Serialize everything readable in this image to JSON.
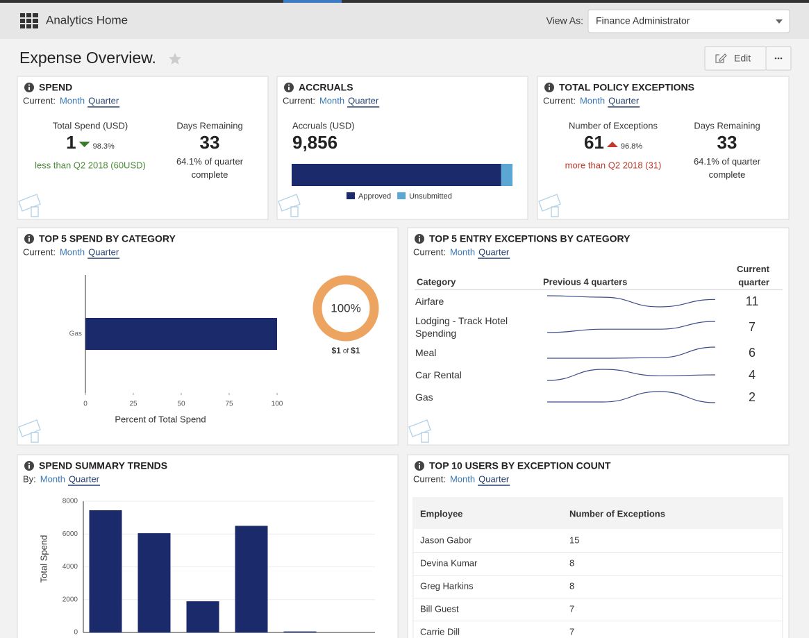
{
  "header": {
    "app_title": "Analytics Home",
    "view_as_label": "View As:",
    "view_as_value": "Finance Administrator"
  },
  "page": {
    "title": "Expense Overview.",
    "edit_button": "Edit"
  },
  "cards": [
    {
      "title": "SPEND",
      "period_label": "Current:",
      "period_options": [
        "Month",
        "Quarter"
      ],
      "period_selected": 1,
      "kpis": [
        {
          "label": "Total Spend (USD)",
          "value": "1",
          "change": "98.3%",
          "direction": "down",
          "note": "less than Q2 2018 (60USD)"
        },
        {
          "label": "Days Remaining",
          "value": "33",
          "note": "64.1% of quarter complete"
        }
      ]
    },
    {
      "title": "ACCRUALS",
      "period_label": "Current:",
      "period_options": [
        "Month",
        "Quarter"
      ],
      "period_selected": 1,
      "kpis": [
        {
          "label": "Accruals (USD)",
          "value": "9,856"
        }
      ]
    },
    {
      "title": "TOTAL POLICY EXCEPTIONS",
      "period_label": "Current:",
      "period_options": [
        "Month",
        "Quarter"
      ],
      "period_selected": 1,
      "kpis": [
        {
          "label": "Number of Exceptions",
          "value": "61",
          "change": "96.8%",
          "direction": "up",
          "note": "more than Q2 2018 (31)"
        },
        {
          "label": "Days Remaining",
          "value": "33",
          "note": "64.1% of quarter complete"
        }
      ]
    },
    {
      "title": "TOP 5 SPEND BY CATEGORY",
      "period_label": "Current:",
      "period_options": [
        "Month",
        "Quarter"
      ],
      "period_selected": 1,
      "donut_caption": {
        "amount": "$1",
        "of": "of",
        "total": "$1"
      }
    },
    {
      "title": "TOP 5 ENTRY EXCEPTIONS BY CATEGORY",
      "period_label": "Current:",
      "period_options": [
        "Month",
        "Quarter"
      ],
      "period_selected": 1,
      "table": {
        "columns": [
          "Category",
          "Previous 4 quarters",
          "Current quarter"
        ],
        "rows": [
          {
            "category": "Airfare",
            "trend": [
              10.5,
              10.3,
              9,
              10
            ],
            "current": 11
          },
          {
            "category": "Lodging - Track Hotel Spending",
            "trend": [
              5,
              5.3,
              5.3,
              6
            ],
            "current": 7
          },
          {
            "category": "Meal",
            "trend": [
              4,
              4,
              4.1,
              6
            ],
            "current": 6
          },
          {
            "category": "Car Rental",
            "trend": [
              3,
              4.2,
              3.5,
              3.6
            ],
            "current": 4
          },
          {
            "category": "Gas",
            "trend": [
              1,
              1,
              2.5,
              0.9
            ],
            "current": 2
          }
        ]
      }
    },
    {
      "title": "SPEND SUMMARY TRENDS",
      "period_label": "By:",
      "period_options": [
        "Month",
        "Quarter"
      ],
      "period_selected": 1
    },
    {
      "title": "TOP 10 USERS BY EXCEPTION COUNT",
      "period_label": "Current:",
      "period_options": [
        "Month",
        "Quarter"
      ],
      "period_selected": 1,
      "table": {
        "columns": [
          "Employee",
          "Number of Exceptions"
        ],
        "rows": [
          [
            "Jason Gabor",
            15
          ],
          [
            "Devina Kumar",
            8
          ],
          [
            "Greg Harkins",
            8
          ],
          [
            "Bill Guest",
            7
          ],
          [
            "Carrie Dill",
            7
          ]
        ]
      }
    }
  ],
  "chart_data": [
    {
      "type": "stacked-bar",
      "series": [
        {
          "name": "Approved",
          "color": "#1b2a6b",
          "values": [
            9350
          ]
        },
        {
          "name": "Unsubmitted",
          "color": "#5ba7d4",
          "values": [
            506
          ]
        }
      ]
    },
    {
      "type": "bar",
      "orientation": "horizontal",
      "categories": [
        "Gas"
      ],
      "values": [
        100
      ],
      "xlim": [
        0,
        100
      ],
      "xticks": [
        0,
        25,
        50,
        75,
        100
      ],
      "xlabel": "Percent of Total Spend",
      "color": "#1b2a6b"
    },
    {
      "type": "pie",
      "values": [
        100
      ],
      "value_labels": [
        "100%"
      ],
      "color": "#eda461"
    },
    {
      "type": "bar",
      "values": [
        7450,
        6050,
        1900,
        6500,
        60
      ],
      "ylim": [
        0,
        8000
      ],
      "yticks": [
        0,
        2000,
        4000,
        6000,
        8000
      ],
      "ylabel": "Total Spend",
      "grid": true,
      "color": "#1b2a6b"
    }
  ]
}
